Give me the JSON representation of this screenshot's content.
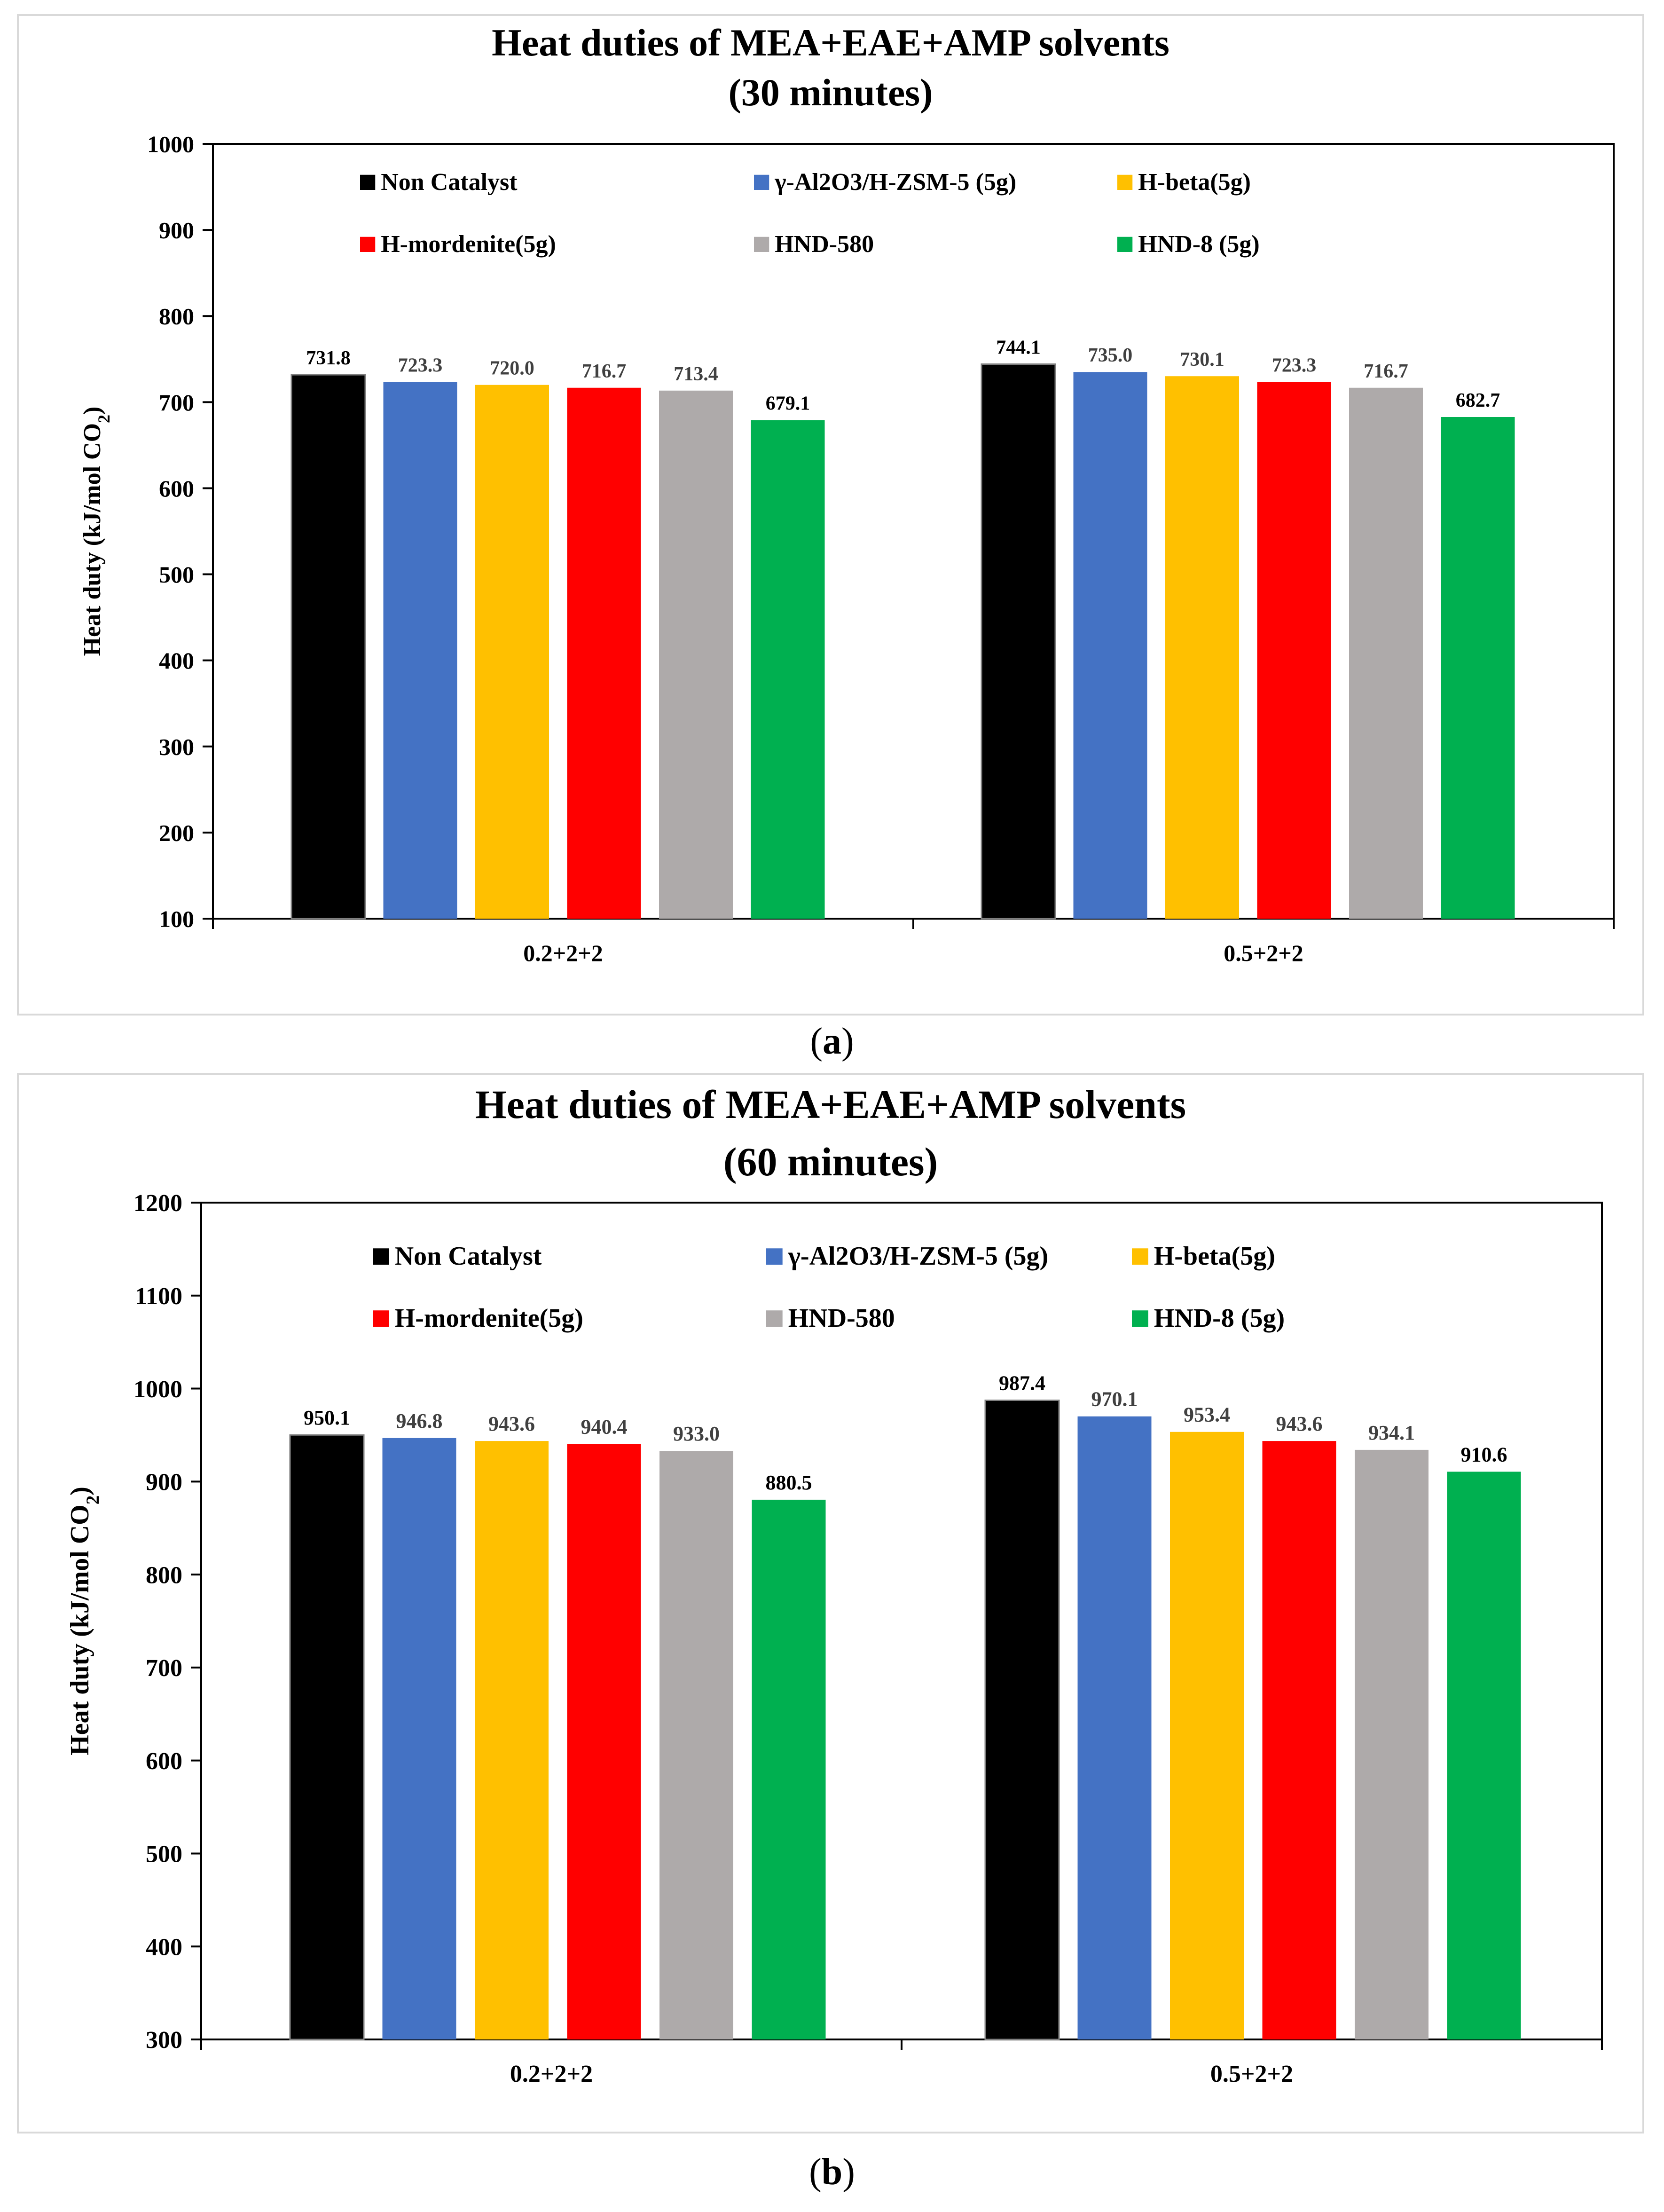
{
  "chart_data": [
    {
      "type": "bar",
      "title": "Heat duties of MEA+EAE+AMP solvents",
      "subtitle": "(30 minutes)",
      "ylabel": "Heat duty (kJ/mol CO2)",
      "ylim": [
        100,
        1000
      ],
      "yticks": [
        100,
        200,
        300,
        400,
        500,
        600,
        700,
        800,
        900,
        1000
      ],
      "categories": [
        "0.2+2+2",
        "0.5+2+2"
      ],
      "legend_position": "top-inside",
      "series": [
        {
          "name": "Non Catalyst",
          "color": "#000000",
          "values": [
            731.8,
            744.1
          ]
        },
        {
          "name": "γ-Al2O3/H-ZSM-5 (5g)",
          "color": "#4472c4",
          "values": [
            723.3,
            735.0
          ]
        },
        {
          "name": "H-beta(5g)",
          "color": "#ffc000",
          "values": [
            720.0,
            730.1
          ]
        },
        {
          "name": "H-mordenite(5g)",
          "color": "#ff0000",
          "values": [
            716.7,
            723.3
          ]
        },
        {
          "name": "HND-580",
          "color": "#aeaaaa",
          "values": [
            713.4,
            716.7
          ]
        },
        {
          "name": "HND-8 (5g)",
          "color": "#00b050",
          "values": [
            679.1,
            682.7
          ]
        }
      ],
      "data_labels": [
        [
          "731.8",
          "744.1"
        ],
        [
          "723.3",
          "735.0"
        ],
        [
          "720.0",
          "730.1"
        ],
        [
          "716.7",
          "723.3"
        ],
        [
          "713.4",
          "716.7"
        ],
        [
          "679.1",
          "682.7"
        ]
      ],
      "label_colors": [
        "#000000",
        "#404040",
        "#404040",
        "#404040",
        "#404040",
        "#000000"
      ]
    },
    {
      "type": "bar",
      "title": "Heat duties of MEA+EAE+AMP solvents",
      "subtitle": "(60 minutes)",
      "ylabel": "Heat duty (kJ/mol CO2)",
      "ylim": [
        300,
        1200
      ],
      "yticks": [
        300,
        400,
        500,
        600,
        700,
        800,
        900,
        1000,
        1100,
        1200
      ],
      "categories": [
        "0.2+2+2",
        "0.5+2+2"
      ],
      "legend_position": "top-inside",
      "series": [
        {
          "name": "Non Catalyst",
          "color": "#000000",
          "values": [
            950.1,
            987.4
          ]
        },
        {
          "name": "γ-Al2O3/H-ZSM-5 (5g)",
          "color": "#4472c4",
          "values": [
            946.8,
            970.1
          ]
        },
        {
          "name": "H-beta(5g)",
          "color": "#ffc000",
          "values": [
            943.6,
            953.4
          ]
        },
        {
          "name": "H-mordenite(5g)",
          "color": "#ff0000",
          "values": [
            940.4,
            943.6
          ]
        },
        {
          "name": "HND-580",
          "color": "#aeaaaa",
          "values": [
            933.0,
            934.1
          ]
        },
        {
          "name": "HND-8 (5g)",
          "color": "#00b050",
          "values": [
            880.5,
            910.6
          ]
        }
      ],
      "data_labels": [
        [
          "950.1",
          "987.4"
        ],
        [
          "946.8",
          "970.1"
        ],
        [
          "943.6",
          "953.4"
        ],
        [
          "940.4",
          "943.6"
        ],
        [
          "933.0",
          "934.1"
        ],
        [
          "880.5",
          "910.6"
        ]
      ],
      "label_colors": [
        "#000000",
        "#404040",
        "#404040",
        "#404040",
        "#404040",
        "#000000"
      ]
    }
  ],
  "captions": {
    "a": {
      "open": "(",
      "letter": "a",
      "close": ")"
    },
    "b": {
      "open": "(",
      "letter": "b",
      "close": ")"
    }
  }
}
